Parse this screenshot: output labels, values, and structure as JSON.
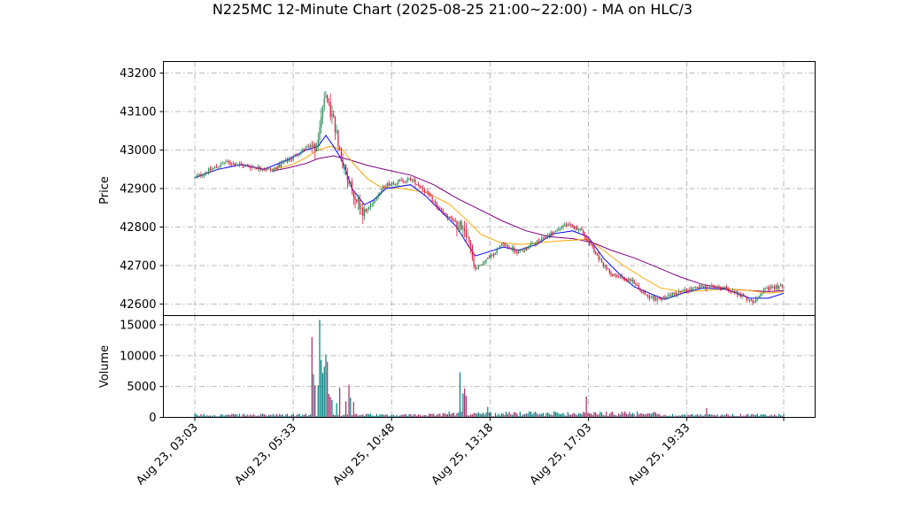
{
  "chart_data": {
    "type": "candlestick",
    "title": "N225MC 12-Minute Chart (2025-08-25 21:00~22:00) - MA on HLC/3",
    "colors": {
      "up": "#2e8b57",
      "down": "#dc143c",
      "vol_up": "#008080",
      "vol_down": "#a0306a",
      "ma_short": "#0000ff",
      "ma_mid": "#ffa500",
      "ma_long": "#800080",
      "grid": "#b0b0b0"
    },
    "x_tick_labels": [
      "Aug 23, 03:03",
      "Aug 23, 05:33",
      "Aug 25, 10:48",
      "Aug 25, 13:18",
      "Aug 25, 17:03",
      "Aug 25, 19:33"
    ],
    "grid": true,
    "price_panel": {
      "ylabel": "Price",
      "ylim": [
        42570,
        43230
      ],
      "yticks": [
        42600,
        42700,
        42800,
        42900,
        43000,
        43100,
        43200
      ],
      "ytick_labels": [
        "42600",
        "42700",
        "42800",
        "42900",
        "43000",
        "43100",
        "43200"
      ]
    },
    "volume_panel": {
      "ylabel": "Volume",
      "ylim": [
        0,
        16500
      ],
      "yticks": [
        0,
        5000,
        10000,
        15000
      ],
      "ytick_labels": [
        "0",
        "5000",
        "10000",
        "15000"
      ]
    },
    "price_path": [
      [
        0,
        42928
      ],
      [
        8,
        42945
      ],
      [
        20,
        42968
      ],
      [
        35,
        42958
      ],
      [
        50,
        42948
      ],
      [
        62,
        42978
      ],
      [
        72,
        43005
      ],
      [
        80,
        43012
      ],
      [
        84,
        43140
      ],
      [
        90,
        43080
      ],
      [
        96,
        42960
      ],
      [
        102,
        42900
      ],
      [
        110,
        42835
      ],
      [
        118,
        42880
      ],
      [
        124,
        42910
      ],
      [
        140,
        42925
      ],
      [
        148,
        42900
      ],
      [
        160,
        42840
      ],
      [
        172,
        42800
      ],
      [
        178,
        42760
      ],
      [
        182,
        42690
      ],
      [
        186,
        42705
      ],
      [
        192,
        42725
      ],
      [
        200,
        42755
      ],
      [
        210,
        42735
      ],
      [
        222,
        42760
      ],
      [
        232,
        42785
      ],
      [
        240,
        42805
      ],
      [
        250,
        42795
      ],
      [
        258,
        42745
      ],
      [
        265,
        42700
      ],
      [
        272,
        42675
      ],
      [
        284,
        42660
      ],
      [
        292,
        42625
      ],
      [
        300,
        42612
      ],
      [
        315,
        42632
      ],
      [
        330,
        42645
      ],
      [
        345,
        42640
      ],
      [
        355,
        42622
      ],
      [
        362,
        42605
      ],
      [
        367,
        42630
      ],
      [
        374,
        42642
      ],
      [
        382,
        42648
      ]
    ],
    "volume_spikes": [
      [
        76,
        13000
      ],
      [
        77,
        7000
      ],
      [
        78,
        5200
      ],
      [
        80,
        5200
      ],
      [
        81,
        15800
      ],
      [
        82,
        9300
      ],
      [
        83,
        7200
      ],
      [
        84,
        8200
      ],
      [
        85,
        10200
      ],
      [
        86,
        9000
      ],
      [
        87,
        3800
      ],
      [
        88,
        3300
      ],
      [
        89,
        2800
      ],
      [
        92,
        2300
      ],
      [
        94,
        4800
      ],
      [
        98,
        2600
      ],
      [
        100,
        5300
      ],
      [
        101,
        3200
      ],
      [
        103,
        2500
      ],
      [
        172,
        7300
      ],
      [
        174,
        3900
      ],
      [
        175,
        4700
      ],
      [
        176,
        3500
      ],
      [
        190,
        1700
      ],
      [
        254,
        3400
      ],
      [
        332,
        1500
      ]
    ],
    "ma_short_path": [
      [
        0,
        42928
      ],
      [
        15,
        42950
      ],
      [
        30,
        42962
      ],
      [
        45,
        42950
      ],
      [
        62,
        42978
      ],
      [
        72,
        43000
      ],
      [
        80,
        43010
      ],
      [
        85,
        43038
      ],
      [
        90,
        43010
      ],
      [
        96,
        42970
      ],
      [
        102,
        42900
      ],
      [
        110,
        42858
      ],
      [
        116,
        42870
      ],
      [
        124,
        42900
      ],
      [
        140,
        42910
      ],
      [
        150,
        42880
      ],
      [
        160,
        42840
      ],
      [
        170,
        42800
      ],
      [
        176,
        42760
      ],
      [
        182,
        42725
      ],
      [
        190,
        42735
      ],
      [
        200,
        42748
      ],
      [
        210,
        42740
      ],
      [
        222,
        42755
      ],
      [
        232,
        42782
      ],
      [
        245,
        42790
      ],
      [
        255,
        42775
      ],
      [
        265,
        42720
      ],
      [
        275,
        42680
      ],
      [
        285,
        42645
      ],
      [
        295,
        42628
      ],
      [
        305,
        42612
      ],
      [
        318,
        42630
      ],
      [
        330,
        42642
      ],
      [
        345,
        42638
      ],
      [
        360,
        42615
      ],
      [
        372,
        42615
      ],
      [
        382,
        42628
      ]
    ],
    "ma_mid_path": [
      [
        50,
        42950
      ],
      [
        62,
        42960
      ],
      [
        72,
        42980
      ],
      [
        80,
        43000
      ],
      [
        88,
        43010
      ],
      [
        96,
        43000
      ],
      [
        104,
        42960
      ],
      [
        112,
        42925
      ],
      [
        120,
        42905
      ],
      [
        135,
        42900
      ],
      [
        150,
        42890
      ],
      [
        165,
        42860
      ],
      [
        176,
        42820
      ],
      [
        186,
        42780
      ],
      [
        198,
        42760
      ],
      [
        212,
        42755
      ],
      [
        225,
        42760
      ],
      [
        240,
        42765
      ],
      [
        255,
        42768
      ],
      [
        265,
        42740
      ],
      [
        278,
        42700
      ],
      [
        290,
        42670
      ],
      [
        302,
        42642
      ],
      [
        315,
        42632
      ],
      [
        330,
        42635
      ],
      [
        345,
        42640
      ],
      [
        360,
        42635
      ],
      [
        372,
        42628
      ],
      [
        382,
        42632
      ]
    ],
    "ma_long_path": [
      [
        50,
        42945
      ],
      [
        62,
        42955
      ],
      [
        72,
        42965
      ],
      [
        80,
        42978
      ],
      [
        90,
        42985
      ],
      [
        100,
        42975
      ],
      [
        112,
        42960
      ],
      [
        125,
        42948
      ],
      [
        140,
        42935
      ],
      [
        155,
        42910
      ],
      [
        170,
        42875
      ],
      [
        185,
        42845
      ],
      [
        200,
        42815
      ],
      [
        215,
        42790
      ],
      [
        230,
        42775
      ],
      [
        245,
        42770
      ],
      [
        258,
        42760
      ],
      [
        270,
        42740
      ],
      [
        285,
        42720
      ],
      [
        300,
        42695
      ],
      [
        315,
        42670
      ],
      [
        330,
        42650
      ],
      [
        345,
        42640
      ],
      [
        360,
        42635
      ],
      [
        372,
        42632
      ],
      [
        382,
        42635
      ]
    ],
    "n_candles": 383
  }
}
